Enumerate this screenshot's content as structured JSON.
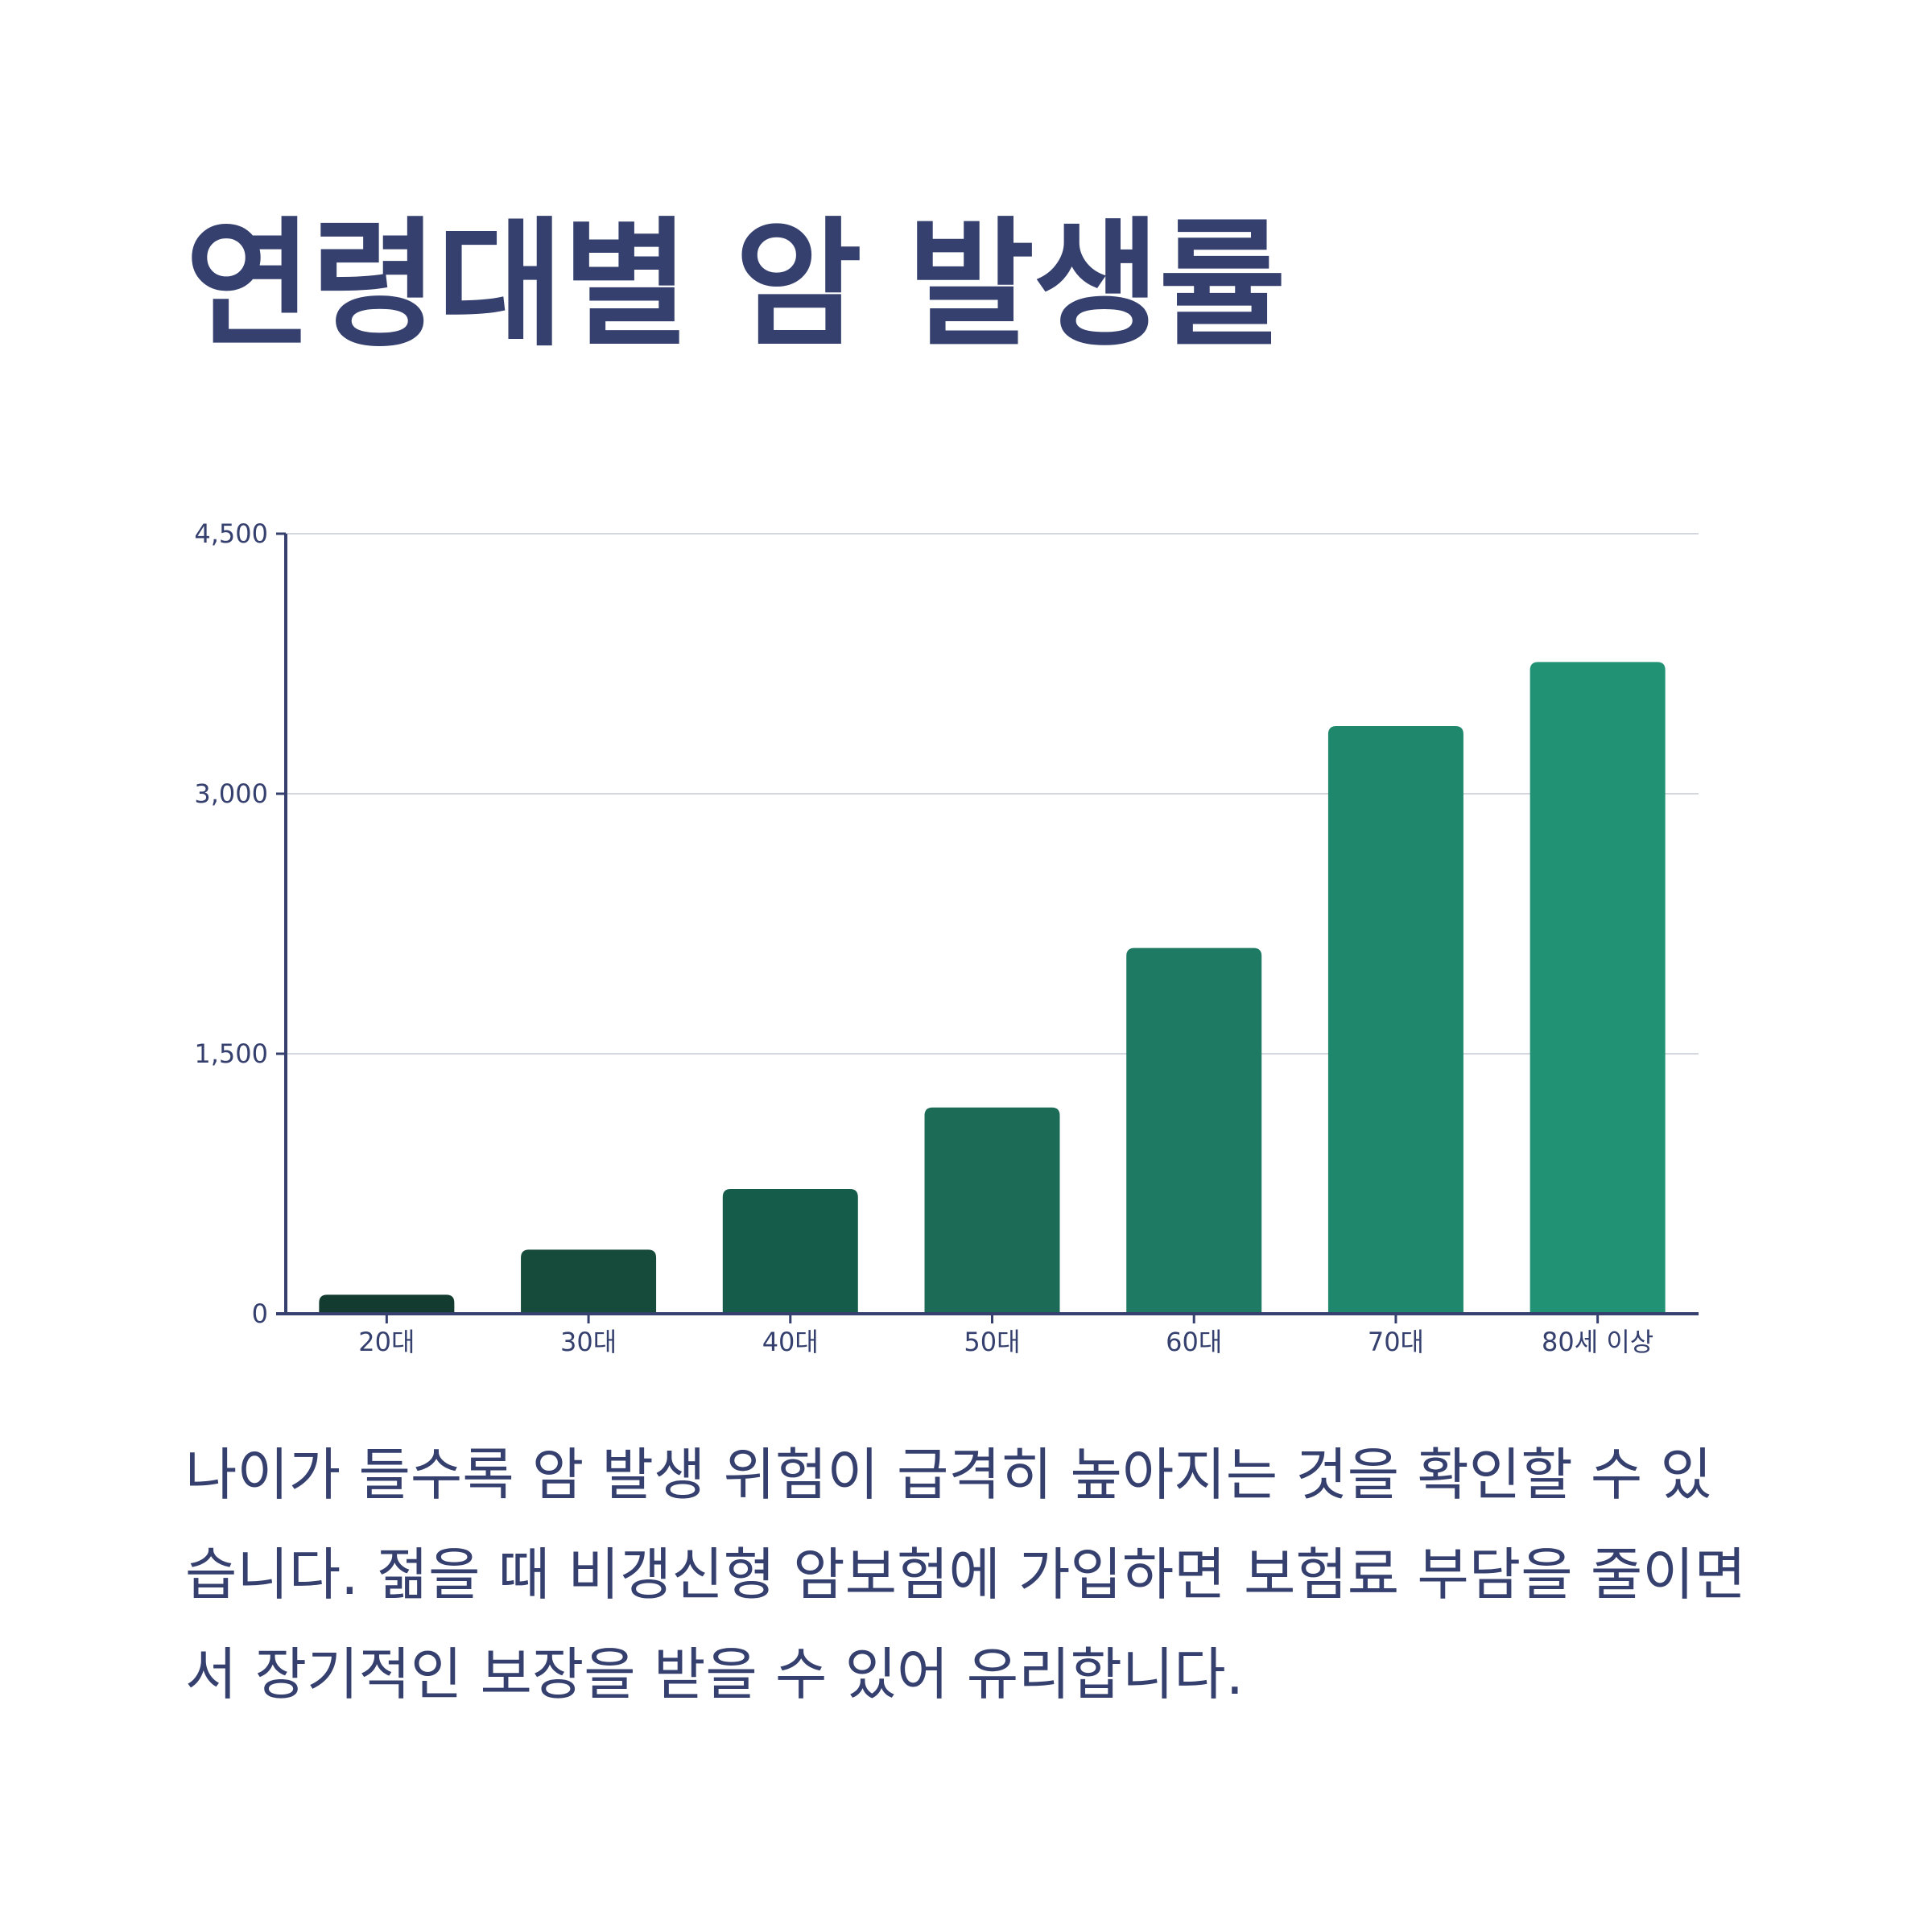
{
  "title": "연령대별 암 발생률",
  "description": "나이가 들수록 암 발생 위험이 급격히 높아지는 것을 확인할 수 있습니다. 젊을 때 비갱신형 암보험에 가입하면 보험료 부담을 줄이면서 장기적인 보장을 받을 수 있어 유리합니다.",
  "colors": {
    "text": "#35406f",
    "axis": "#35406f",
    "grid": "#d5d7de",
    "bars": [
      "#133b2f",
      "#164a3b",
      "#165c4a",
      "#1b6b56",
      "#1e7a63",
      "#1f876c",
      "#229274"
    ]
  },
  "chart_data": {
    "type": "bar",
    "title": "연령대별 암 발생률",
    "xlabel": "",
    "ylabel": "",
    "categories": [
      "20대",
      "30대",
      "40대",
      "50대",
      "60대",
      "70대",
      "80세 이상"
    ],
    "values": [
      110,
      370,
      720,
      1190,
      2110,
      3390,
      3760
    ],
    "ylim": [
      0,
      4500
    ],
    "yticks": [
      0,
      1500,
      3000,
      4500
    ],
    "ytick_labels": [
      "0",
      "1,500",
      "3,000",
      "4,500"
    ],
    "grid": true,
    "legend": "none"
  }
}
